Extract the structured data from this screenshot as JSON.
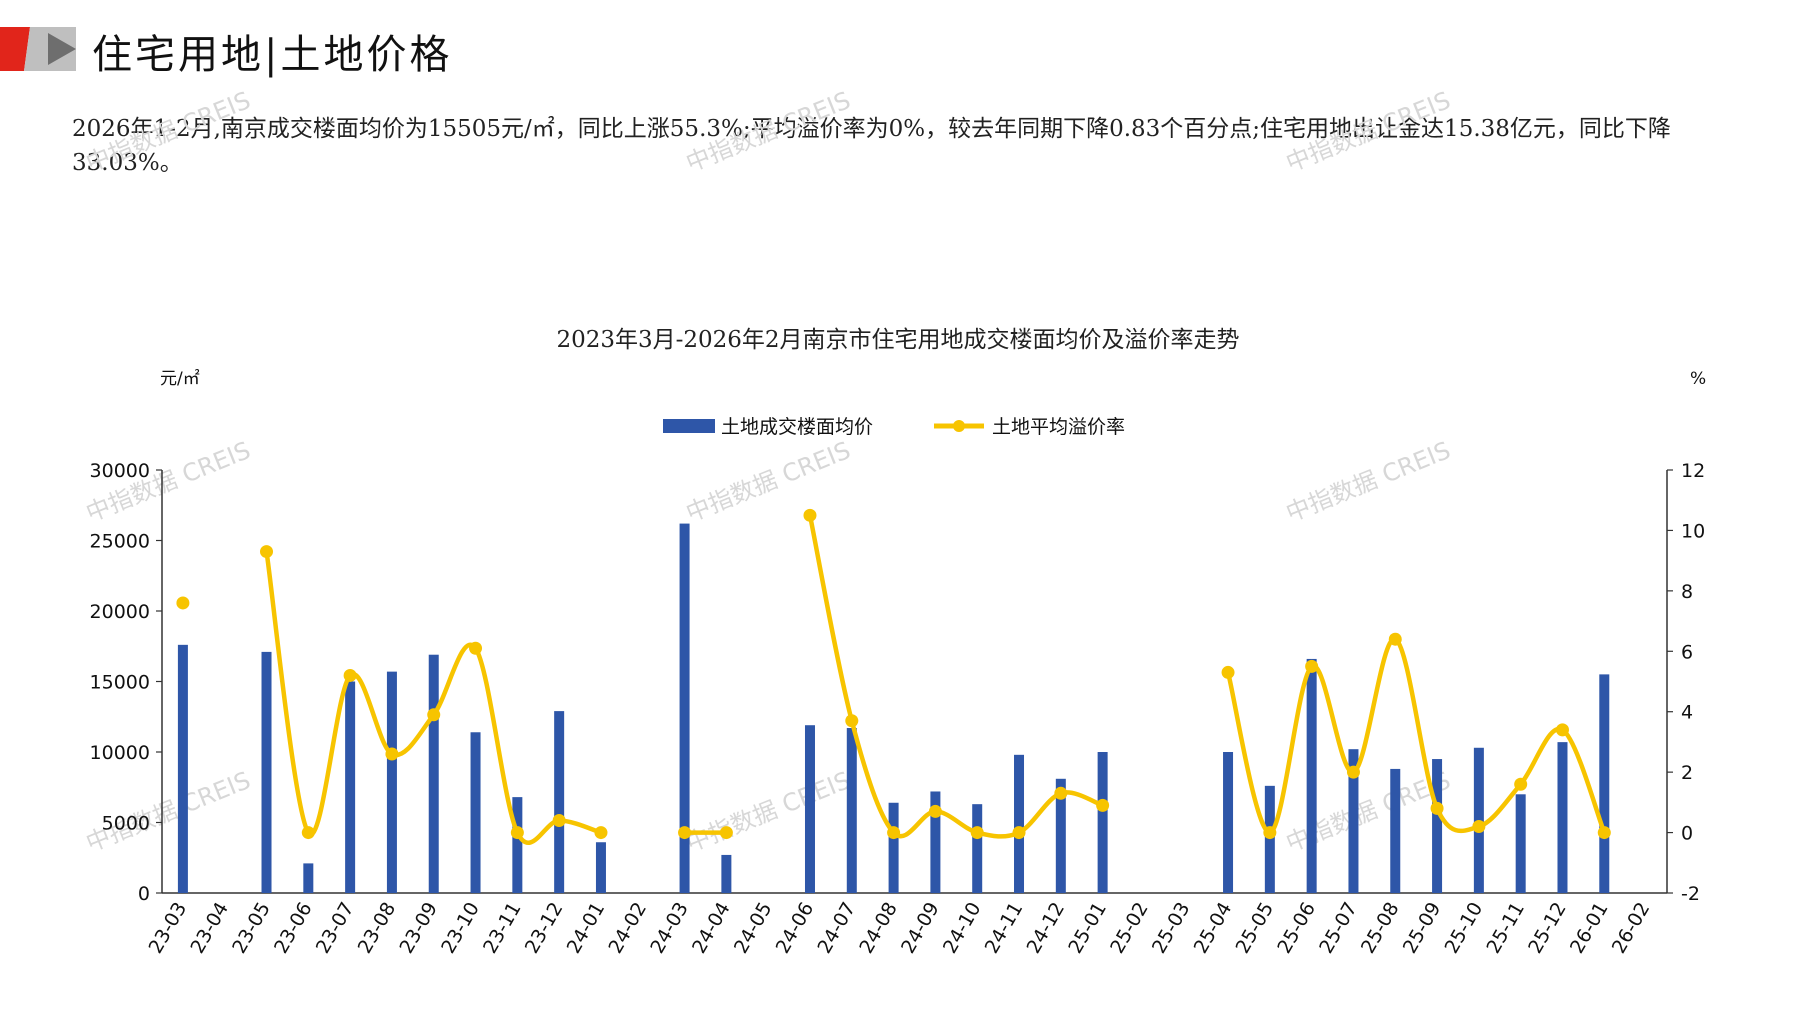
{
  "header": {
    "title": "住宅用地|土地价格"
  },
  "summary": {
    "text": "2026年1-2月,南京成交楼面均价为15505元/㎡，同比上涨55.3%;平均溢价率为0%，较去年同期下降0.83个百分点;住宅用地出让金达15.38亿元，同比下降33.03%。"
  },
  "watermark": "中指数据 CREIS",
  "colors": {
    "bar": "#2e56a8",
    "line": "#f7c400",
    "logo_red": "#e1251b",
    "logo_gray": "#8c8c8c"
  },
  "chart_data": {
    "type": "bar+line",
    "title": "2023年3月-2026年2月南京市住宅用地成交楼面均价及溢价率走势",
    "y_left_unit": "元/㎡",
    "y_right_unit": "%",
    "y_left_lim": [
      0,
      30000
    ],
    "y_left_ticks": [
      "0",
      "5000",
      "10000",
      "15000",
      "20000",
      "25000",
      "30000"
    ],
    "y_right_lim": [
      -2,
      12
    ],
    "y_right_ticks": [
      "-2",
      "0",
      "2",
      "4",
      "6",
      "8",
      "10",
      "12"
    ],
    "legend_position": "top-center",
    "categories": [
      "23-03",
      "23-04",
      "23-05",
      "23-06",
      "23-07",
      "23-08",
      "23-09",
      "23-10",
      "23-11",
      "23-12",
      "24-01",
      "24-02",
      "24-03",
      "24-04",
      "24-05",
      "24-06",
      "24-07",
      "24-08",
      "24-09",
      "24-10",
      "24-11",
      "24-12",
      "25-01",
      "25-02",
      "25-03",
      "25-04",
      "25-05",
      "25-06",
      "25-07",
      "25-08",
      "25-09",
      "25-10",
      "25-11",
      "25-12",
      "26-01",
      "26-02"
    ],
    "series": [
      {
        "name": "土地成交楼面均价",
        "type": "bar",
        "axis": "left",
        "values": [
          17600,
          null,
          17100,
          2100,
          15000,
          15700,
          16900,
          11400,
          6800,
          12900,
          3600,
          null,
          26200,
          2700,
          null,
          11900,
          11700,
          6400,
          7200,
          6300,
          9800,
          8100,
          10000,
          null,
          null,
          10000,
          7600,
          16600,
          10200,
          8800,
          9500,
          10300,
          7000,
          10700,
          15505,
          null
        ]
      },
      {
        "name": "土地平均溢价率",
        "type": "line",
        "axis": "right",
        "values": [
          7.6,
          null,
          9.3,
          0.0,
          5.2,
          2.6,
          3.9,
          6.1,
          0.0,
          0.4,
          0.0,
          null,
          0.0,
          0.0,
          null,
          10.5,
          3.7,
          0.0,
          0.7,
          0.0,
          0.0,
          1.3,
          0.9,
          null,
          null,
          5.3,
          0.0,
          5.5,
          2.0,
          6.4,
          0.8,
          0.2,
          1.6,
          3.4,
          0.0,
          null
        ]
      }
    ]
  }
}
